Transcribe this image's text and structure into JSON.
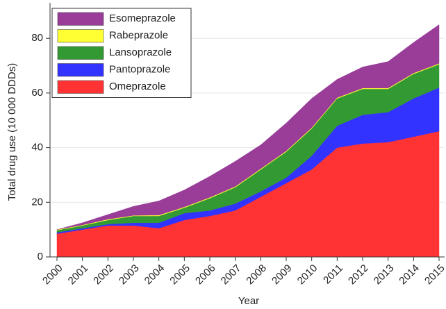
{
  "chart_data": {
    "type": "stacked_area",
    "x_label": "Year",
    "y_label": "Total drug use (10 000 DDDs)",
    "x": [
      2000,
      2001,
      2002,
      2003,
      2004,
      2005,
      2006,
      2007,
      2008,
      2009,
      2010,
      2011,
      2012,
      2013,
      2014,
      2015
    ],
    "xlim": [
      2000,
      2015
    ],
    "xticks": [
      2000,
      2001,
      2002,
      2003,
      2004,
      2005,
      2006,
      2007,
      2008,
      2009,
      2010,
      2011,
      2012,
      2013,
      2014,
      2015
    ],
    "ylim": [
      0,
      92
    ],
    "yticks": [
      0,
      20,
      40,
      60,
      80
    ],
    "grid": true,
    "legend": "upper left",
    "series": [
      {
        "name": "Omeprazole",
        "color": "#ff3333",
        "values": [
          8.5,
          10,
          11.5,
          11.5,
          10.5,
          13.5,
          15,
          17,
          22,
          27,
          32,
          40,
          41.5,
          42,
          44,
          46
        ]
      },
      {
        "name": "Pantoprazole",
        "color": "#3333ff",
        "values": [
          0.5,
          0.5,
          0.5,
          1,
          2,
          2.5,
          2,
          2.5,
          2,
          2,
          5,
          8,
          10.5,
          11,
          14,
          16
        ]
      },
      {
        "name": "Lansoprazole",
        "color": "#339933",
        "values": [
          0.8,
          1,
          1.5,
          2.5,
          2.5,
          2,
          4.5,
          6,
          8,
          9.5,
          10,
          10,
          9.5,
          8.5,
          9,
          8.5
        ]
      },
      {
        "name": "Rabeprazole",
        "color": "#ffff33",
        "values": [
          0.2,
          0.2,
          0.3,
          0.2,
          0.3,
          0.3,
          0.3,
          0.3,
          0.3,
          0.3,
          0.3,
          0.3,
          0.3,
          0.3,
          0.3,
          0.3
        ]
      },
      {
        "name": "Esomeprazole",
        "color": "#993d99",
        "values": [
          0,
          0.8,
          1.7,
          3.3,
          5.2,
          6.2,
          7.7,
          9.2,
          8.7,
          10.2,
          10.7,
          6.7,
          7.7,
          9.7,
          11.2,
          14.2
        ]
      }
    ]
  }
}
